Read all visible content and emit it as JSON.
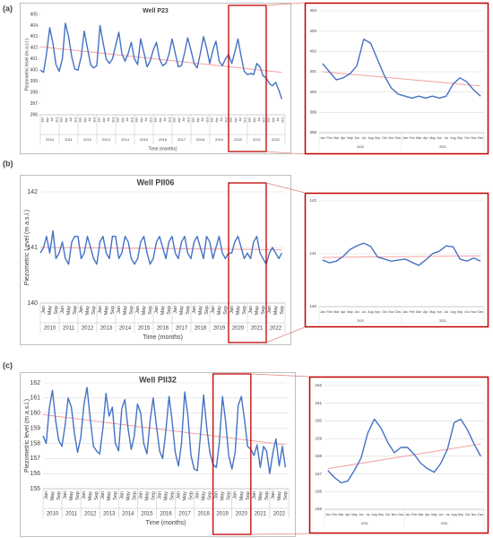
{
  "chart_data": [
    {
      "type": "line",
      "panel_label": "(a)",
      "title": "Well P23",
      "y_label": "Piezometric level (m a.s.l.)",
      "x_label": "Time (months)",
      "years": [
        "2010",
        "2011",
        "2012",
        "2013",
        "2014",
        "2015",
        "2016",
        "2017",
        "2018",
        "2019",
        "2020",
        "2021",
        "2022"
      ],
      "month_labels": [
        "Jan",
        "Apr",
        "Jul",
        "Oct"
      ],
      "xlim": [
        2010,
        2023
      ],
      "ylim": [
        396,
        405
      ],
      "yticks": [
        396,
        397,
        398,
        399,
        400,
        401,
        402,
        403,
        404,
        405
      ],
      "grid": false,
      "color": "#4472c4",
      "x": [
        2010,
        2010.17,
        2010.33,
        2010.5,
        2010.67,
        2010.83,
        2011,
        2011.17,
        2011.33,
        2011.5,
        2011.67,
        2011.83,
        2012,
        2012.17,
        2012.33,
        2012.5,
        2012.67,
        2012.83,
        2013,
        2013.17,
        2013.33,
        2013.5,
        2013.67,
        2013.83,
        2014,
        2014.17,
        2014.33,
        2014.5,
        2014.67,
        2014.83,
        2015,
        2015.17,
        2015.33,
        2015.5,
        2015.67,
        2015.83,
        2016,
        2016.17,
        2016.33,
        2016.5,
        2016.67,
        2016.83,
        2017,
        2017.17,
        2017.33,
        2017.5,
        2017.67,
        2017.83,
        2018,
        2018.17,
        2018.33,
        2018.5,
        2018.67,
        2018.83,
        2019,
        2019.17,
        2019.33,
        2019.5,
        2019.67,
        2019.83,
        2020,
        2020.17,
        2020.33,
        2020.5,
        2020.67,
        2020.83,
        2021,
        2021.17,
        2021.33,
        2021.5,
        2021.67,
        2021.83,
        2022,
        2022.17,
        2022.33,
        2022.5,
        2022.67,
        2022.83
      ],
      "values": [
        400.0,
        399.8,
        401.5,
        403.8,
        402.4,
        400.5,
        399.9,
        401.0,
        404.2,
        403.0,
        401.2,
        400.1,
        400.0,
        401.2,
        403.5,
        402.0,
        400.5,
        400.2,
        400.4,
        404.0,
        402.5,
        401.0,
        400.6,
        401.0,
        402.2,
        403.4,
        401.5,
        400.8,
        401.5,
        402.5,
        401.0,
        400.5,
        402.8,
        401.6,
        400.3,
        400.8,
        401.8,
        402.5,
        401.0,
        400.4,
        400.6,
        401.4,
        402.8,
        401.5,
        400.3,
        400.4,
        401.6,
        402.9,
        401.8,
        400.6,
        400.2,
        401.5,
        403.0,
        402.0,
        400.6,
        401.8,
        402.6,
        400.8,
        400.4,
        401.0,
        401.4,
        400.6,
        401.6,
        402.8,
        401.2,
        399.9,
        399.6,
        399.7,
        399.6,
        400.6,
        400.3,
        399.5,
        399.3,
        398.8,
        398.6,
        398.9,
        398.2,
        397.4
      ],
      "trend": {
        "x": [
          2010,
          2022.83
        ],
        "values": [
          402.1,
          399.8
        ],
        "color": "#f4a0a0"
      }
    },
    {
      "type": "line",
      "categories": [
        "Jan",
        "Feb",
        "Mar",
        "Apr",
        "May",
        "Jun",
        "Jul",
        "Aug",
        "Sep",
        "Oct",
        "Nov",
        "Dec",
        "Jan",
        "Feb",
        "Mar",
        "Apr",
        "May",
        "Jun",
        "Jul",
        "Aug",
        "Sep",
        "Oct",
        "Nov",
        "Dec"
      ],
      "years": [
        "2020",
        "2021"
      ],
      "ylim": [
        398,
        404
      ],
      "yticks": [
        398,
        399,
        400,
        401,
        402,
        403,
        404
      ],
      "grid": true,
      "color": "#4472c4",
      "values": [
        401.4,
        401.0,
        400.6,
        400.7,
        400.9,
        401.3,
        402.6,
        402.4,
        401.6,
        400.8,
        400.2,
        399.9,
        399.8,
        399.7,
        399.8,
        399.7,
        399.8,
        399.7,
        399.8,
        400.4,
        400.7,
        400.5,
        400.1,
        399.8
      ],
      "trend": {
        "values": [
          401.0,
          400.3
        ],
        "color": "#f4a0a0"
      }
    },
    {
      "type": "line",
      "panel_label": "(b)",
      "title": "Well PII06",
      "y_label": "Piezometric Level (m a.s.l.)",
      "x_label": "Time (months)",
      "years": [
        "2010",
        "2011",
        "2012",
        "2013",
        "2014",
        "2015",
        "2016",
        "2017",
        "2018",
        "2019",
        "2020",
        "2021",
        "2022"
      ],
      "month_labels": [
        "Jan",
        "May",
        "Sep"
      ],
      "xlim": [
        2010,
        2023
      ],
      "ylim": [
        140,
        142
      ],
      "yticks": [
        140,
        141,
        142
      ],
      "grid": true,
      "color": "#4472c4",
      "x": [
        2010,
        2010.17,
        2010.33,
        2010.5,
        2010.67,
        2010.83,
        2011,
        2011.17,
        2011.33,
        2011.5,
        2011.67,
        2011.83,
        2012,
        2012.17,
        2012.33,
        2012.5,
        2012.67,
        2012.83,
        2013,
        2013.17,
        2013.33,
        2013.5,
        2013.67,
        2013.83,
        2014,
        2014.17,
        2014.33,
        2014.5,
        2014.67,
        2014.83,
        2015,
        2015.17,
        2015.33,
        2015.5,
        2015.67,
        2015.83,
        2016,
        2016.17,
        2016.33,
        2016.5,
        2016.67,
        2016.83,
        2017,
        2017.17,
        2017.33,
        2017.5,
        2017.67,
        2017.83,
        2018,
        2018.17,
        2018.33,
        2018.5,
        2018.67,
        2018.83,
        2019,
        2019.17,
        2019.33,
        2019.5,
        2019.67,
        2019.83,
        2020,
        2020.17,
        2020.33,
        2020.5,
        2020.67,
        2020.83,
        2021,
        2021.17,
        2021.33,
        2021.5,
        2021.67,
        2021.83,
        2022,
        2022.17,
        2022.33,
        2022.5,
        2022.67,
        2022.83
      ],
      "values": [
        140.9,
        141.0,
        141.2,
        140.9,
        141.3,
        140.8,
        140.9,
        141.1,
        140.8,
        140.7,
        141.1,
        141.2,
        141.2,
        140.8,
        140.9,
        141.2,
        141.0,
        140.8,
        140.7,
        141.1,
        141.2,
        140.9,
        140.8,
        141.2,
        141.2,
        140.8,
        140.9,
        141.2,
        141.1,
        140.8,
        140.7,
        140.8,
        141.1,
        141.2,
        140.9,
        140.7,
        140.8,
        141.1,
        141.2,
        141.0,
        140.8,
        141.1,
        141.2,
        140.9,
        140.8,
        141.1,
        141.2,
        140.9,
        140.8,
        141.1,
        141.2,
        141.0,
        140.8,
        141.2,
        141.1,
        140.8,
        141.0,
        141.2,
        140.9,
        140.8,
        140.9,
        140.9,
        141.1,
        141.2,
        141.0,
        140.8,
        140.9,
        140.8,
        141.1,
        141.2,
        140.9,
        140.8,
        140.7,
        140.9,
        141.0,
        140.9,
        140.8,
        140.9
      ],
      "trend": {
        "x": [
          2010,
          2022.83
        ],
        "values": [
          141.0,
          140.96
        ],
        "color": "#f4a0a0"
      }
    },
    {
      "type": "line",
      "categories": [
        "Jan",
        "Feb",
        "Mar",
        "Apr",
        "May",
        "Jun",
        "Jul",
        "Aug",
        "Sep",
        "Oct",
        "Nov",
        "Dec",
        "Jan",
        "Feb",
        "Mar",
        "Apr",
        "May",
        "Jun",
        "Jul",
        "Aug",
        "Sep",
        "Oct",
        "Nov",
        "Dec"
      ],
      "years": [
        "2020",
        "2021"
      ],
      "ylim": [
        140,
        142
      ],
      "yticks": [
        140,
        141,
        142
      ],
      "grid": true,
      "color": "#4472c4",
      "values": [
        140.88,
        140.83,
        140.86,
        140.95,
        141.08,
        141.15,
        141.2,
        141.14,
        140.94,
        140.9,
        140.86,
        140.88,
        140.9,
        140.84,
        140.78,
        140.88,
        141.0,
        141.05,
        141.15,
        141.13,
        140.9,
        140.86,
        140.92,
        140.86
      ],
      "trend": {
        "values": [
          140.93,
          140.96
        ],
        "color": "#f4a0a0"
      }
    },
    {
      "type": "line",
      "panel_label": "(c)",
      "title": "Well PII32",
      "y_label": "Piezometric level (m a.s.l.)",
      "x_label": "Time (months)",
      "years": [
        "2010",
        "2011",
        "2012",
        "2013",
        "2014",
        "2015",
        "2016",
        "2017",
        "2018",
        "2019",
        "2020",
        "2021",
        "2022"
      ],
      "month_labels": [
        "Jan",
        "May",
        "Sep"
      ],
      "xlim": [
        2010,
        2023
      ],
      "ylim": [
        155,
        162
      ],
      "yticks": [
        155,
        156,
        157,
        158,
        159,
        160,
        161,
        162
      ],
      "grid": true,
      "color": "#4472c4",
      "x": [
        2010,
        2010.17,
        2010.33,
        2010.5,
        2010.67,
        2010.83,
        2011,
        2011.17,
        2011.33,
        2011.5,
        2011.67,
        2011.83,
        2012,
        2012.17,
        2012.33,
        2012.5,
        2012.67,
        2012.83,
        2013,
        2013.17,
        2013.33,
        2013.5,
        2013.67,
        2013.83,
        2014,
        2014.17,
        2014.33,
        2014.5,
        2014.67,
        2014.83,
        2015,
        2015.17,
        2015.33,
        2015.5,
        2015.67,
        2015.83,
        2016,
        2016.17,
        2016.33,
        2016.5,
        2016.67,
        2016.83,
        2017,
        2017.17,
        2017.33,
        2017.5,
        2017.67,
        2017.83,
        2018,
        2018.17,
        2018.33,
        2018.5,
        2018.67,
        2018.83,
        2019,
        2019.17,
        2019.33,
        2019.5,
        2019.67,
        2019.83,
        2020,
        2020.17,
        2020.33,
        2020.5,
        2020.67,
        2020.83,
        2021,
        2021.17,
        2021.33,
        2021.5,
        2021.67,
        2021.83,
        2022,
        2022.17,
        2022.33,
        2022.5,
        2022.67,
        2022.83
      ],
      "values": [
        158.5,
        158.0,
        160.3,
        161.5,
        159.5,
        158.2,
        157.8,
        159.2,
        161.0,
        160.4,
        158.6,
        157.4,
        158.4,
        160.6,
        161.7,
        159.6,
        157.8,
        157.5,
        157.3,
        159.0,
        161.3,
        159.8,
        160.4,
        158.0,
        157.5,
        160.3,
        160.9,
        159.0,
        157.6,
        158.5,
        160.6,
        160.0,
        158.0,
        157.3,
        159.5,
        161.0,
        159.2,
        157.5,
        157.0,
        158.8,
        161.1,
        159.5,
        157.4,
        156.5,
        158.0,
        161.4,
        159.8,
        157.2,
        156.3,
        156.2,
        158.5,
        161.2,
        159.0,
        157.4,
        156.6,
        156.4,
        158.0,
        161.1,
        159.4,
        157.2,
        156.3,
        157.4,
        160.5,
        161.1,
        159.5,
        157.8,
        157.6,
        157.2,
        157.9,
        156.4,
        157.8,
        157.5,
        156.0,
        157.4,
        158.3,
        156.5,
        157.8,
        156.4
      ],
      "trend": {
        "x": [
          2010,
          2022.83
        ],
        "values": [
          159.9,
          157.9
        ],
        "color": "#f4a0a0"
      }
    },
    {
      "type": "line",
      "categories": [
        "Jan",
        "Feb",
        "Mar",
        "Apr",
        "May",
        "Jun",
        "Jul",
        "Aug",
        "Sep",
        "Oct",
        "Nov",
        "Dec",
        "Jan",
        "Feb",
        "Mar",
        "Apr",
        "May",
        "Jun",
        "Jul",
        "Aug",
        "Sep",
        "Oct",
        "Nov",
        "Dec"
      ],
      "years": [
        "2019",
        "2020"
      ],
      "ylim": [
        155,
        162
      ],
      "yticks": [
        155,
        156,
        157,
        158,
        159,
        160,
        161,
        162
      ],
      "grid": true,
      "color": "#4472c4",
      "values": [
        157.2,
        156.8,
        156.5,
        156.6,
        157.2,
        157.9,
        159.3,
        160.1,
        159.6,
        158.8,
        158.2,
        158.5,
        158.5,
        158.1,
        157.6,
        157.3,
        157.1,
        157.6,
        158.4,
        159.9,
        160.1,
        159.5,
        158.7,
        158.0
      ],
      "trend": {
        "values": [
          157.3,
          158.7
        ],
        "color": "#f4a0a0"
      }
    }
  ]
}
